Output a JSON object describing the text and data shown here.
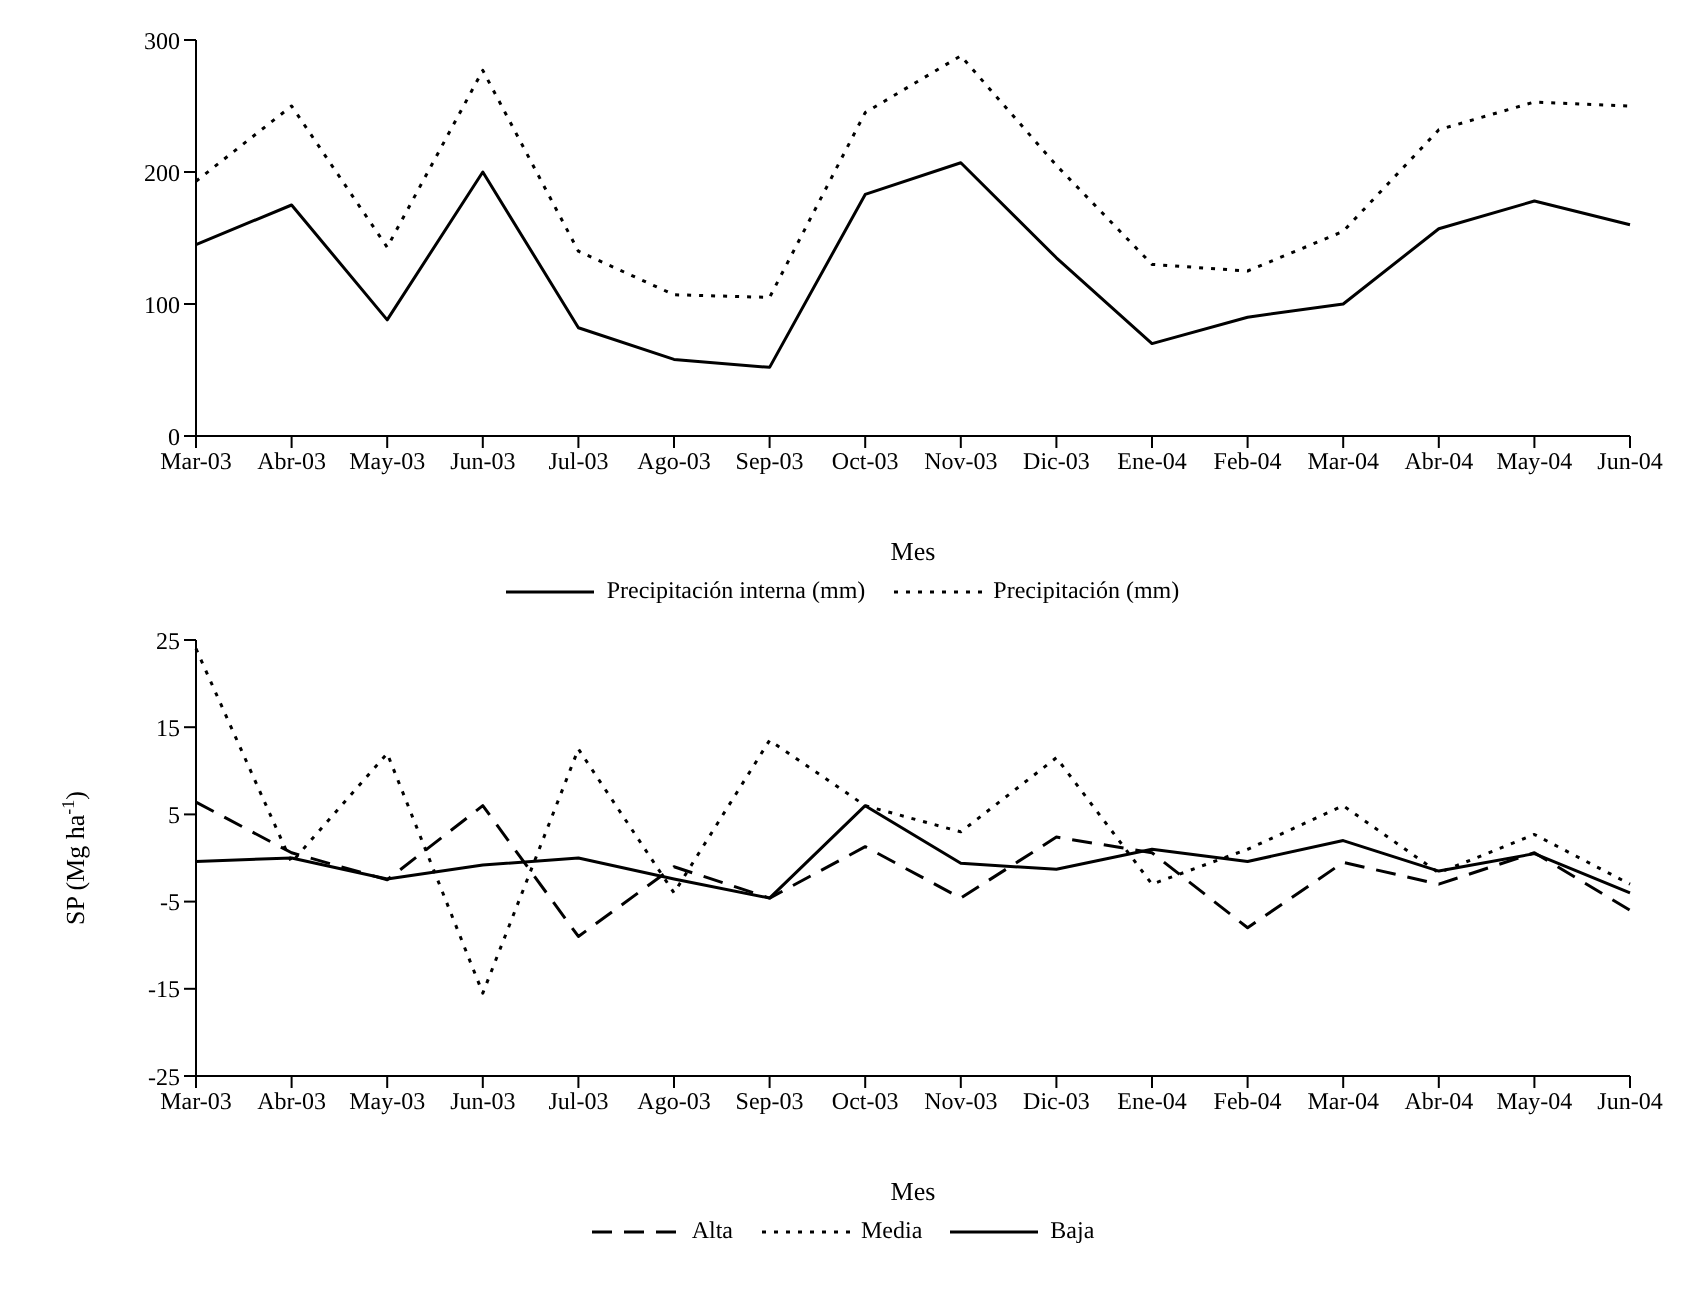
{
  "chart_data": [
    {
      "type": "line",
      "xlabel": "Mes",
      "categories": [
        "Mar-03",
        "Abr-03",
        "May-03",
        "Jun-03",
        "Jul-03",
        "Ago-03",
        "Sep-03",
        "Oct-03",
        "Nov-03",
        "Dic-03",
        "Ene-04",
        "Feb-04",
        "Mar-04",
        "Abr-04",
        "May-04",
        "Jun-04"
      ],
      "series": [
        {
          "name": "Precipitación interna (mm)",
          "color": "#000000",
          "line_style": "solid",
          "values": [
            145,
            175,
            88,
            200,
            82,
            58,
            52,
            183,
            207,
            135,
            70,
            90,
            100,
            157,
            178,
            160
          ]
        },
        {
          "name": "Precipitación (mm)",
          "color": "#000000",
          "line_style": "dotted",
          "values": [
            193,
            250,
            143,
            277,
            140,
            107,
            105,
            245,
            288,
            205,
            130,
            125,
            155,
            232,
            253,
            250
          ]
        }
      ],
      "ylim": [
        0,
        300
      ],
      "yticks": [
        0,
        100,
        200,
        300
      ],
      "legend": "bottom",
      "marker": "none"
    },
    {
      "type": "line",
      "xlabel": "Mes",
      "ylabel": "SP (Mg ha$^{-1}$)",
      "categories": [
        "Mar-03",
        "Abr-03",
        "May-03",
        "Jun-03",
        "Jul-03",
        "Ago-03",
        "Sep-03",
        "Oct-03",
        "Nov-03",
        "Dic-03",
        "Ene-04",
        "Feb-04",
        "Mar-04",
        "Abr-04",
        "May-04",
        "Jun-04"
      ],
      "series": [
        {
          "name": "Alta",
          "color": "#000000",
          "line_style": "dashed",
          "values": [
            6.4,
            0.6,
            -2.5,
            6,
            -9,
            -1,
            -4.6,
            1.3,
            -4.6,
            2.4,
            0.6,
            -8,
            -0.5,
            -3,
            0.6,
            -6
          ]
        },
        {
          "name": "Media",
          "color": "#000000",
          "line_style": "dotted",
          "values": [
            24,
            -0.5,
            12,
            -15.5,
            12.5,
            -4,
            13.5,
            6,
            3,
            11.5,
            -3,
            1,
            6,
            -1.7,
            2.7,
            -3
          ]
        },
        {
          "name": "Baja",
          "color": "#000000",
          "line_style": "solid",
          "values": [
            -0.4,
            0,
            -2.4,
            -0.8,
            0,
            -2.4,
            -4.6,
            6,
            -0.6,
            -1.3,
            1,
            -0.4,
            2,
            -1.5,
            0.5,
            -4
          ]
        }
      ],
      "ylim": [
        -25,
        25
      ],
      "yticks": [
        -25,
        -15,
        -5,
        5,
        15,
        25
      ],
      "legend": "bottom",
      "marker": "none"
    }
  ]
}
